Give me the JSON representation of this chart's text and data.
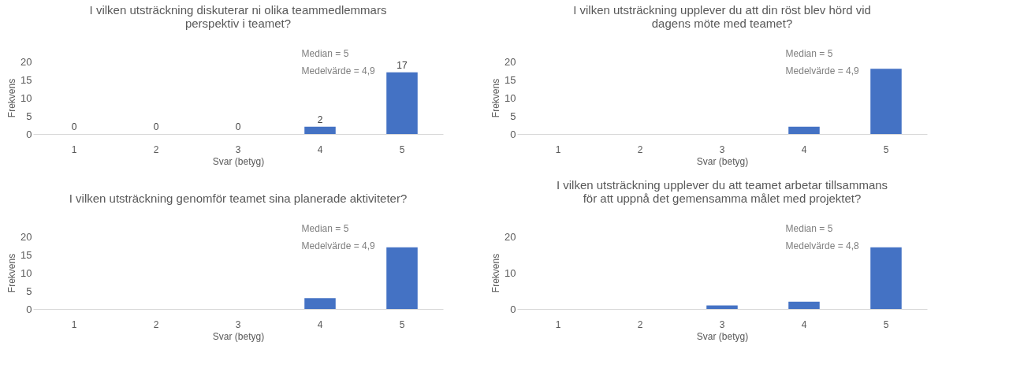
{
  "chart_data": [
    {
      "type": "bar",
      "title": "I vilken utsträckning diskuterar ni olika teammedlemmars perspektiv i teamet?",
      "xlabel": "Svar (betyg)",
      "ylabel": "Frekvens",
      "categories": [
        "1",
        "2",
        "3",
        "4",
        "5"
      ],
      "values": [
        0,
        0,
        0,
        2,
        17
      ],
      "color": "#4472c4",
      "ylim": [
        0,
        20
      ],
      "yticks": [
        0,
        5,
        10,
        15,
        20
      ],
      "data_labels": true,
      "grid": false,
      "annotations": [
        "Median = 5",
        "Medelvärde = 4,9"
      ]
    },
    {
      "type": "bar",
      "title": "I vilken utsträckning upplever du att din röst blev hörd vid dagens möte med teamet?",
      "xlabel": "Svar (betyg)",
      "ylabel": "Frekvens",
      "categories": [
        "1",
        "2",
        "3",
        "4",
        "5"
      ],
      "values": [
        0,
        0,
        0,
        2,
        18
      ],
      "color": "#4472c4",
      "ylim": [
        0,
        20
      ],
      "yticks": [
        0,
        5,
        10,
        15,
        20
      ],
      "grid": false,
      "annotations": [
        "Median = 5",
        "Medelvärde = 4,9"
      ]
    },
    {
      "type": "bar",
      "title": "I vilken utsträckning genomför teamet sina planerade aktiviteter?",
      "xlabel": "Svar (betyg)",
      "ylabel": "Frekvens",
      "categories": [
        "1",
        "2",
        "3",
        "4",
        "5"
      ],
      "values": [
        0,
        0,
        0,
        3,
        17
      ],
      "color": "#4472c4",
      "ylim": [
        0,
        20
      ],
      "yticks": [
        0,
        5,
        10,
        15,
        20
      ],
      "grid": false,
      "annotations": [
        "Median = 5",
        "Medelvärde = 4,9"
      ]
    },
    {
      "type": "bar",
      "title": "I vilken utsträckning upplever du att teamet arbetar tillsammans för att uppnå det gemensamma målet med projektet?",
      "xlabel": "Svar (betyg)",
      "ylabel": "Frekvens",
      "categories": [
        "1",
        "2",
        "3",
        "4",
        "5"
      ],
      "values": [
        0,
        0,
        1,
        2,
        17
      ],
      "color": "#4472c4",
      "ylim": [
        0,
        20
      ],
      "yticks": [
        0,
        10,
        20
      ],
      "grid": false,
      "annotations": [
        "Median = 5",
        "Medelvärde = 4,8"
      ]
    }
  ]
}
